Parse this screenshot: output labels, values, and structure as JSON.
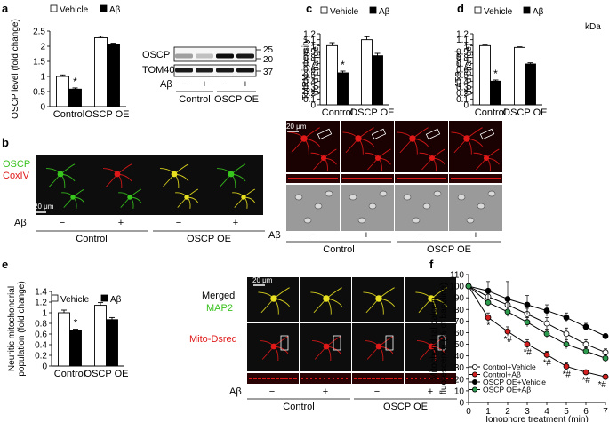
{
  "figure": {
    "panel_labels": [
      "a",
      "b",
      "c",
      "d",
      "e",
      "f"
    ]
  },
  "colors": {
    "vehicle": "#ffffff",
    "abeta": "#000000",
    "micro_dark": "#0d0d0d",
    "red_signal": "#e01818",
    "green_signal": "#39c81e",
    "yellow_overlap": "#e8e020",
    "phase_gray": "#9a9a9a",
    "line_control_vehicle": "#ffffff",
    "line_control_abeta": "#d21f1f",
    "line_oscp_vehicle": "#000000",
    "line_oscp_abeta": "#2e9a4e"
  },
  "legend": {
    "vehicle": "Vehicle",
    "abeta": "Aβ"
  },
  "blot": {
    "kda_label": "kDa",
    "rows": [
      "OSCP",
      "TOM40"
    ],
    "markers": [
      "25",
      "20",
      "37"
    ],
    "abeta_label": "Aβ",
    "lane_signs": [
      "−",
      "+",
      "−",
      "+"
    ],
    "groups": [
      "Control",
      "OSCP OE"
    ],
    "bands_oscp": [
      0.35,
      0.22,
      0.95,
      0.9
    ],
    "bands_tom40": [
      0.9,
      0.88,
      0.9,
      0.92
    ]
  },
  "panel_b": {
    "stain1": "OSCP",
    "stain2": "CoxIV",
    "scale_bar": "20 μm",
    "abeta_label": "Aβ",
    "lane_signs": [
      "−",
      "+",
      "−",
      "+"
    ],
    "groups": [
      "Control",
      "OSCP OE"
    ]
  },
  "panel_tmrm_images": {
    "scale_bar": "20 μm",
    "abeta_label": "Aβ",
    "lane_signs": [
      "−",
      "+",
      "−",
      "+"
    ],
    "groups": [
      "Control",
      "OSCP OE"
    ]
  },
  "panel_e_images": {
    "merged_label": "Merged",
    "map2_label": "MAP2",
    "mito_label": "Mito-Dsred",
    "scale_bar": "20 μm",
    "abeta_label": "Aβ",
    "lane_signs": [
      "−",
      "+",
      "−",
      "+"
    ],
    "groups": [
      "Control",
      "OSCP OE"
    ]
  },
  "chart_data": [
    {
      "panel": "a",
      "type": "bar",
      "ylabel": "OSCP level (fold change)",
      "ylim": [
        0,
        2.5
      ],
      "yticks": [
        0,
        0.5,
        1,
        1.5,
        2,
        2.5
      ],
      "categories": [
        "Control",
        "OSCP OE"
      ],
      "series": [
        {
          "name": "Vehicle",
          "values": [
            1.0,
            2.28
          ],
          "errors": [
            0.05,
            0.05
          ]
        },
        {
          "name": "Aβ",
          "values": [
            0.58,
            2.06
          ],
          "errors": [
            0.04,
            0.04
          ]
        }
      ],
      "annotations": [
        {
          "text": "*",
          "category": "Control",
          "series": "Aβ"
        }
      ]
    },
    {
      "panel": "c",
      "type": "bar",
      "ylabel": "TMRM intensity\n(fold change)",
      "ylim": [
        0,
        1.2
      ],
      "yticks": [
        0,
        0.1,
        0.2,
        0.3,
        0.4,
        0.5,
        0.6,
        0.7,
        0.8,
        0.9,
        1,
        1.1,
        1.2
      ],
      "yticklabels": [
        "0",
        "0.1",
        "0.2",
        "0.3",
        "0.4",
        "0.5",
        "0.6",
        "0.7",
        "0.8",
        "0.9",
        "1",
        "1.1",
        "1.2"
      ],
      "categories": [
        "Control",
        "OSCP OE"
      ],
      "series": [
        {
          "name": "Vehicle",
          "values": [
            1.0,
            1.1
          ],
          "errors": [
            0.05,
            0.05
          ]
        },
        {
          "name": "Aβ",
          "values": [
            0.54,
            0.83
          ],
          "errors": [
            0.03,
            0.04
          ]
        }
      ],
      "annotations": [
        {
          "text": "*",
          "category": "Control",
          "series": "Aβ"
        }
      ]
    },
    {
      "panel": "d",
      "type": "bar",
      "ylabel": "ATP level\n(fold change)",
      "ylim": [
        0,
        1.2
      ],
      "yticks": [
        0,
        0.1,
        0.2,
        0.3,
        0.4,
        0.5,
        0.6,
        0.7,
        0.8,
        0.9,
        1,
        1.1,
        1.2
      ],
      "yticklabels": [
        "0",
        "0.1",
        "0.2",
        "0.3",
        "0.4",
        "0.5",
        "0.6",
        "0.7",
        "0.8",
        "0.9",
        "1",
        "1.1",
        "1.2"
      ],
      "categories": [
        "Control",
        "OSCP OE"
      ],
      "series": [
        {
          "name": "Vehicle",
          "values": [
            1.0,
            0.97
          ],
          "errors": [
            0.01,
            0.01
          ]
        },
        {
          "name": "Aβ",
          "values": [
            0.4,
            0.69
          ],
          "errors": [
            0.02,
            0.02
          ]
        }
      ],
      "annotations": [
        {
          "text": "*",
          "category": "Control",
          "series": "Aβ"
        }
      ]
    },
    {
      "panel": "e",
      "type": "bar",
      "ylabel": "Neuritic mitochondrial\npopulation (fold change)",
      "ylim": [
        0,
        1.4
      ],
      "yticks": [
        0,
        0.2,
        0.4,
        0.6,
        0.8,
        1,
        1.2,
        1.4
      ],
      "yticklabels": [
        "0",
        "0.2",
        "0.4",
        "0.6",
        "0.8",
        "1",
        "1.2",
        "1.4"
      ],
      "categories": [
        "Control",
        "OSCP OE"
      ],
      "series": [
        {
          "name": "Vehicle",
          "values": [
            1.0,
            1.14
          ],
          "errors": [
            0.05,
            0.05
          ]
        },
        {
          "name": "Aβ",
          "values": [
            0.66,
            0.87
          ],
          "errors": [
            0.03,
            0.04
          ]
        }
      ],
      "annotations": [
        {
          "text": "*",
          "category": "Control",
          "series": "Aβ"
        }
      ]
    },
    {
      "panel": "f",
      "type": "line",
      "xlabel": "Ionophore treatment (min)",
      "ylabel": "Mitochondrial calcein\nfluorescence (% of baseline)",
      "xlim": [
        0,
        7
      ],
      "ylim": [
        0,
        110
      ],
      "xticks": [
        0,
        1,
        2,
        3,
        4,
        5,
        6,
        7
      ],
      "yticks": [
        0,
        10,
        20,
        30,
        40,
        50,
        60,
        70,
        80,
        90,
        100,
        110
      ],
      "x": [
        0,
        1,
        2,
        3,
        4,
        5,
        6,
        7
      ],
      "series": [
        {
          "name": "Control+Vehicle",
          "values": [
            100,
            91,
            84,
            76,
            68,
            59,
            50,
            43
          ],
          "errors": [
            2,
            3,
            4,
            5,
            5,
            5,
            4,
            3
          ]
        },
        {
          "name": "Control+Aβ",
          "values": [
            100,
            73,
            61,
            50,
            41,
            31,
            26,
            22
          ],
          "errors": [
            2,
            4,
            4,
            4,
            3,
            3,
            2,
            2
          ]
        },
        {
          "name": "OSCP OE+Vehicle",
          "values": [
            100,
            96,
            89,
            84,
            79,
            73,
            65,
            57
          ],
          "errors": [
            2,
            8,
            15,
            8,
            5,
            4,
            3,
            2
          ]
        },
        {
          "name": "OSCP OE+Aβ",
          "values": [
            100,
            86,
            78,
            69,
            59,
            50,
            44,
            38
          ],
          "errors": [
            2,
            3,
            4,
            4,
            4,
            4,
            3,
            3
          ]
        }
      ],
      "annotations": [
        {
          "text": "*",
          "x": 1
        },
        {
          "text": "*#",
          "x": 2
        },
        {
          "text": "*#",
          "x": 3
        },
        {
          "text": "*#",
          "x": 4
        },
        {
          "text": "*#",
          "x": 5
        },
        {
          "text": "*#",
          "x": 6
        },
        {
          "text": "*#",
          "x": 7
        }
      ]
    }
  ]
}
